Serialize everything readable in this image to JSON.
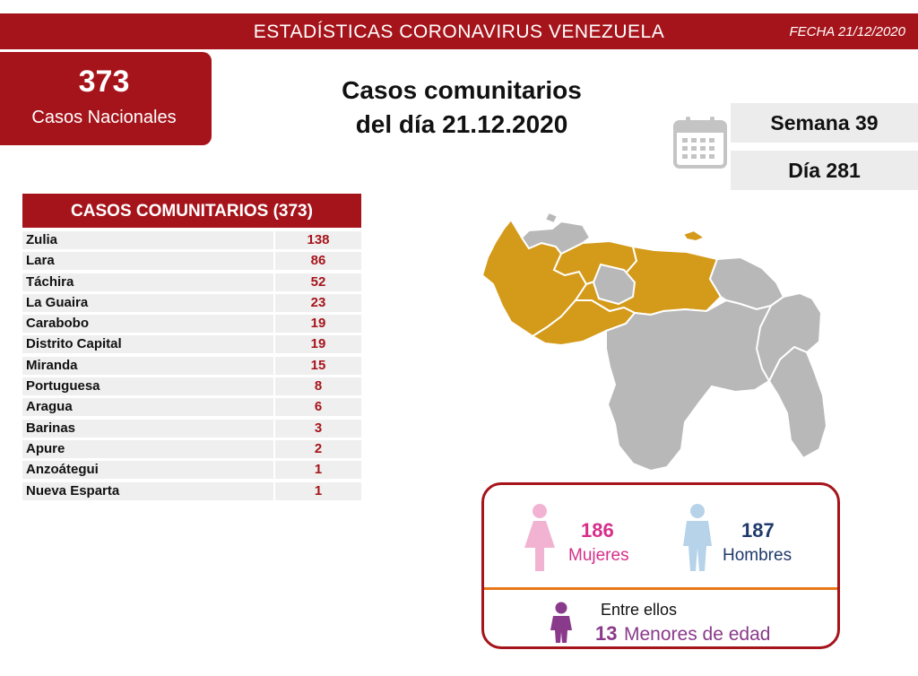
{
  "header": {
    "title": "ESTADÍSTICAS CORONAVIRUS VENEZUELA",
    "date": "FECHA 21/12/2020"
  },
  "national": {
    "count": "373",
    "label": "Casos Nacionales"
  },
  "headline": {
    "line1": "Casos comunitarios",
    "line2": "del día 21.12.2020"
  },
  "calendar": {
    "week": "Semana 39",
    "day": "Día 281",
    "icon": "calendar-icon"
  },
  "community_table": {
    "title": "CASOS COMUNITARIOS (373)",
    "rows": [
      {
        "state": "Zulia",
        "cases": "138"
      },
      {
        "state": "Lara",
        "cases": "86"
      },
      {
        "state": "Táchira",
        "cases": "52"
      },
      {
        "state": "La Guaira",
        "cases": "23"
      },
      {
        "state": "Carabobo",
        "cases": "19"
      },
      {
        "state": "Distrito Capital",
        "cases": "19"
      },
      {
        "state": "Miranda",
        "cases": "15"
      },
      {
        "state": "Portuguesa",
        "cases": "8"
      },
      {
        "state": "Aragua",
        "cases": "6"
      },
      {
        "state": "Barinas",
        "cases": "3"
      },
      {
        "state": "Apure",
        "cases": "2"
      },
      {
        "state": "Anzoátegui",
        "cases": "1"
      },
      {
        "state": "Nueva Esparta",
        "cases": "1"
      }
    ]
  },
  "map": {
    "highlight_color": "#d49a1a",
    "base_color": "#b8b8b8"
  },
  "gender": {
    "female_count": "186",
    "female_label": "Mujeres",
    "male_count": "187",
    "male_label": "Hombres",
    "among_label": "Entre ellos",
    "minors_count": "13",
    "minors_label": "Menores de edad",
    "female_icon": "woman-icon",
    "male_icon": "man-icon",
    "child_icon": "child-icon"
  },
  "colors": {
    "brand_red": "#a6141b",
    "female": "#d62f8a",
    "male": "#1f3a6b",
    "minor": "#8a3a8a",
    "divider": "#e8771a"
  }
}
